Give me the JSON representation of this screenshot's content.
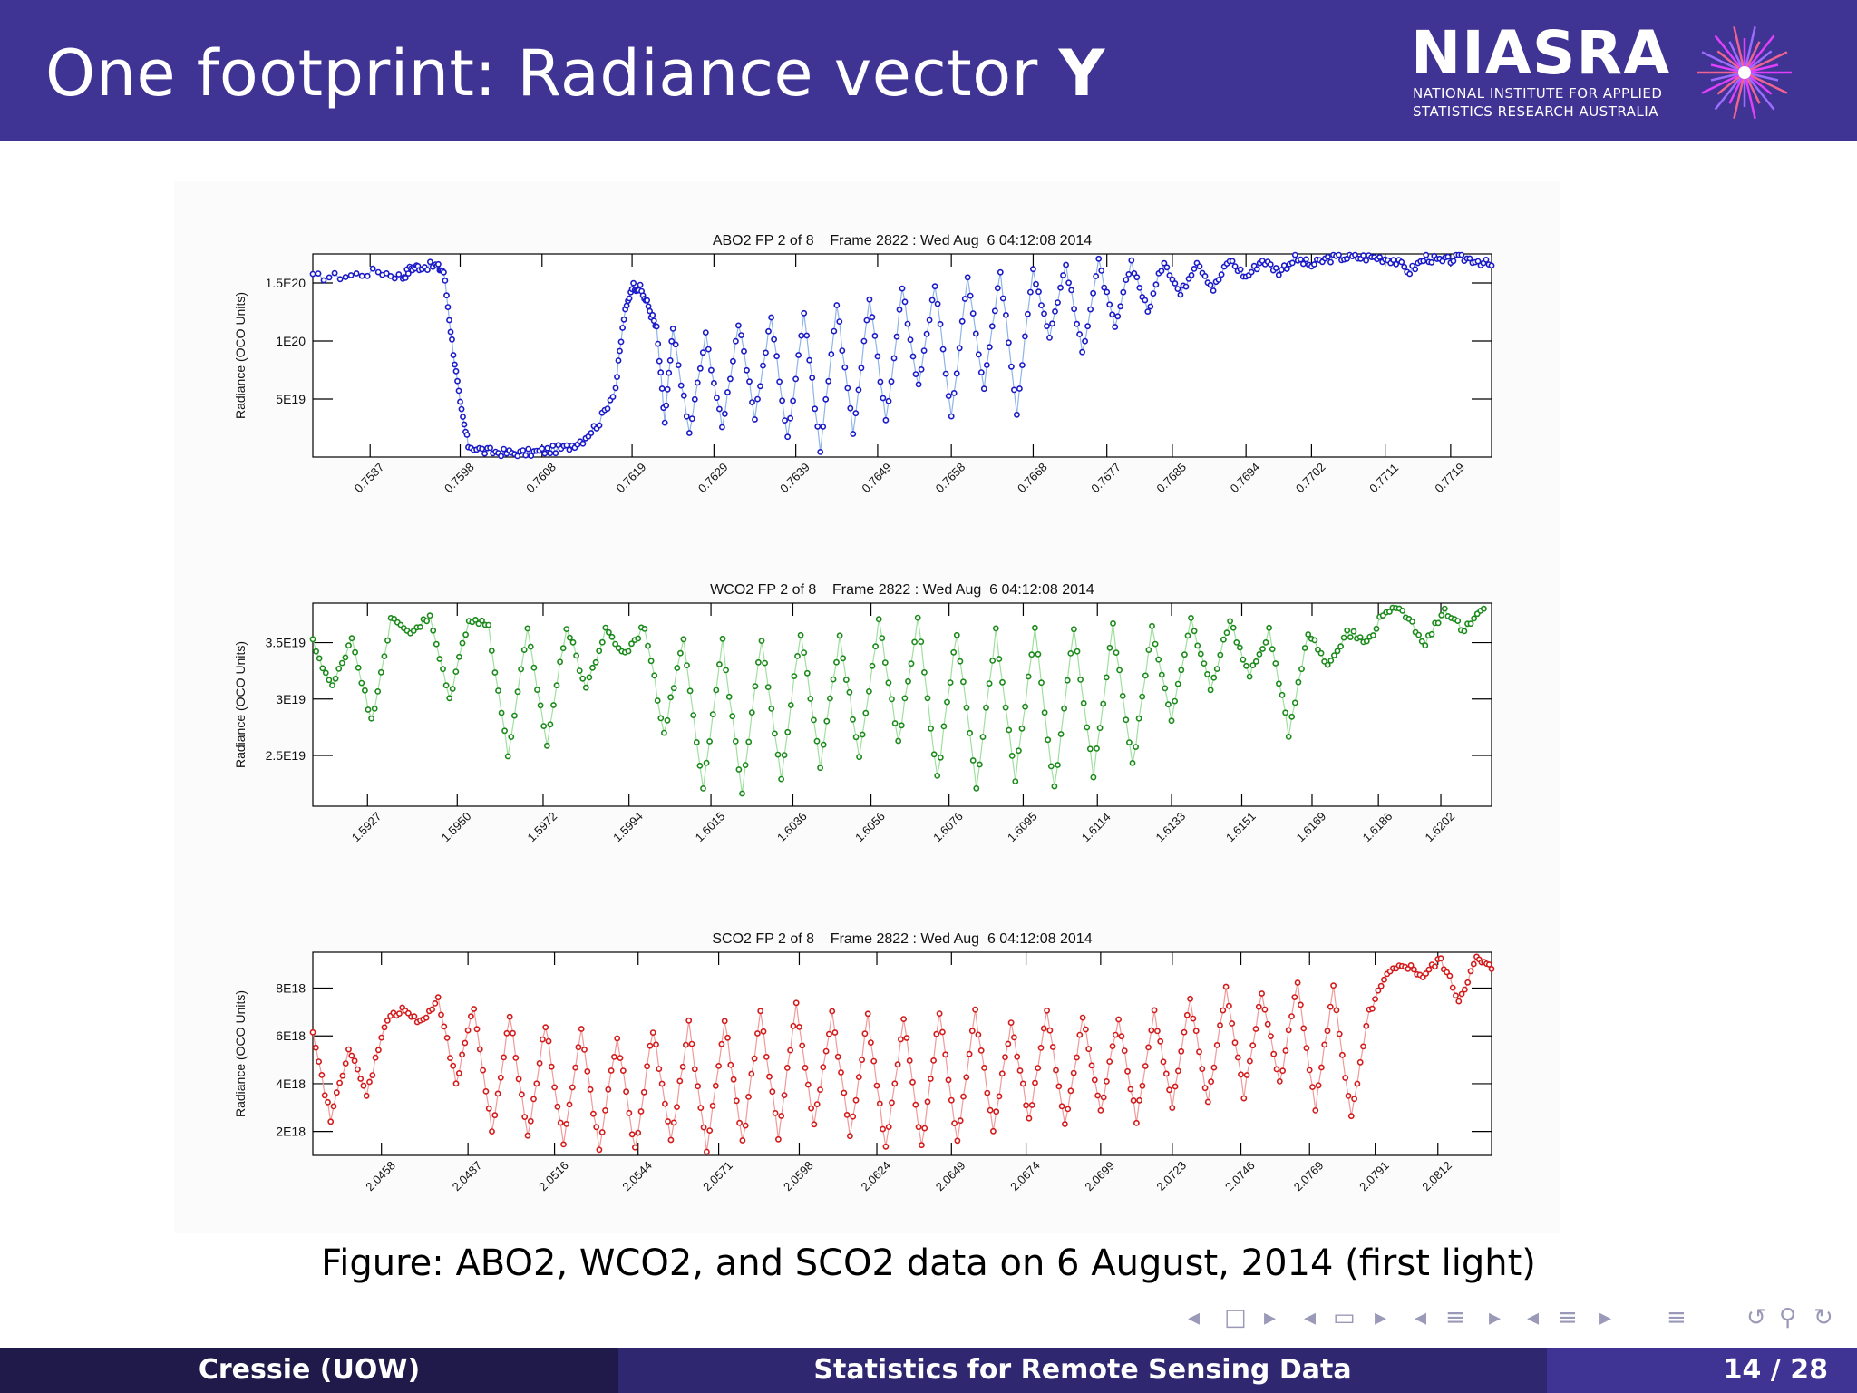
{
  "slide": {
    "title_main": "One footprint: Radiance vector ",
    "title_bold": "Y",
    "caption": "Figure: ABO2, WCO2, and SCO2 data on 6 August, 2014 (first light)"
  },
  "logo": {
    "word": "NIASRA",
    "line1": "NATIONAL INSTITUTE FOR APPLIED",
    "line2": "STATISTICS RESEARCH AUSTRALIA"
  },
  "footer": {
    "author": "Cressie  (UOW)",
    "talk_title": "Statistics for Remote Sensing Data",
    "page": "14 / 28"
  },
  "colors": {
    "header": "#3f3394",
    "footer_left": "#1f1a4a",
    "footer_mid": "#2f2770",
    "abo2": "#1a1ac8",
    "wco2": "#1a8a1a",
    "sco2": "#d41a1a"
  },
  "chart_data": [
    {
      "type": "line",
      "title": "ABO2 FP 2 of 8    Frame 2822 : Wed Aug  6 04:12:08 2014",
      "ylabel": "Radiance (OCO Units)",
      "xlabel": "",
      "xlim": [
        0.758,
        0.7724
      ],
      "ylim": [
        0,
        1.75e+20
      ],
      "yticks": [
        5e+19,
        1e+20,
        1.5e+20
      ],
      "ytick_labels": [
        "5E19",
        "1E20",
        "1.5E20"
      ],
      "xticks": [
        0.7587,
        0.7598,
        0.7608,
        0.7619,
        0.7629,
        0.7639,
        0.7649,
        0.7658,
        0.7668,
        0.7677,
        0.7685,
        0.7694,
        0.7702,
        0.7711,
        0.7719
      ],
      "xtick_labels": [
        "0.7587",
        "0.7598",
        "0.7608",
        "0.7619",
        "0.7629",
        "0.7639",
        "0.7649",
        "0.7658",
        "0.7668",
        "0.7677",
        "0.7685",
        "0.7694",
        "0.7702",
        "0.7711",
        "0.7719"
      ],
      "series": [
        {
          "x": [
            0.758,
            0.7584,
            0.7588,
            0.7591,
            0.7592,
            0.7593,
            0.7595,
            0.7596,
            0.7597,
            0.7598,
            0.7599,
            0.7601,
            0.7603,
            0.7605,
            0.7607,
            0.7609,
            0.7611,
            0.7613,
            0.7615,
            0.7617,
            0.7618,
            0.7619,
            0.762,
            0.7621,
            0.7622,
            0.7623,
            0.7624,
            0.7626,
            0.7628,
            0.763,
            0.7632,
            0.7634,
            0.7636,
            0.7638,
            0.764,
            0.7642,
            0.7644,
            0.7646,
            0.7648,
            0.765,
            0.7652,
            0.7654,
            0.7656,
            0.7658,
            0.766,
            0.7662,
            0.7664,
            0.7666,
            0.7668,
            0.767,
            0.7672,
            0.7674,
            0.7676,
            0.7678,
            0.768,
            0.7682,
            0.7684,
            0.7686,
            0.7688,
            0.769,
            0.7692,
            0.7694,
            0.7696,
            0.7698,
            0.77,
            0.7702,
            0.7704,
            0.7706,
            0.7708,
            0.771,
            0.7712,
            0.7714,
            0.7716,
            0.7718,
            0.772,
            0.7722,
            0.7724
          ],
          "y": [
            1.55e+20,
            1.56e+20,
            1.6e+20,
            1.55e+20,
            1.63e+20,
            1.64e+20,
            1.65e+20,
            1.6e+20,
            1e+20,
            4.5e+19,
            1e+19,
            5e+18,
            4e+18,
            3e+18,
            4e+18,
            6e+18,
            8e+18,
            1.5e+19,
            3e+19,
            6e+19,
            1.2e+20,
            1.48e+20,
            1.45e+20,
            1.3e+20,
            1.1e+20,
            3e+19,
            1.1e+20,
            2e+19,
            1.05e+20,
            2.5e+19,
            1.15e+20,
            3.5e+19,
            1.2e+20,
            1.5e+19,
            1.25e+20,
            5e+18,
            1.32e+20,
            2e+19,
            1.38e+20,
            3e+19,
            1.45e+20,
            6e+19,
            1.5e+20,
            3.5e+19,
            1.55e+20,
            6e+19,
            1.6e+20,
            4e+19,
            1.62e+20,
            1.05e+20,
            1.66e+20,
            9e+19,
            1.68e+20,
            1.1e+20,
            1.69e+20,
            1.25e+20,
            1.7e+20,
            1.4e+20,
            1.7e+20,
            1.45e+20,
            1.7e+20,
            1.55e+20,
            1.7e+20,
            1.6e+20,
            1.71e+20,
            1.65e+20,
            1.71e+20,
            1.72e+20,
            1.72e+20,
            1.72e+20,
            1.7e+20,
            1.6e+20,
            1.72e+20,
            1.68e+20,
            1.72e+20,
            1.7e+20,
            1.65e+20
          ]
        }
      ]
    },
    {
      "type": "line",
      "title": "WCO2 FP 2 of 8    Frame 2822 : Wed Aug  6 04:12:08 2014",
      "ylabel": "Radiance (OCO Units)",
      "xlabel": "",
      "xlim": [
        1.5913,
        1.6215
      ],
      "ylim": [
        2.05e+19,
        3.85e+19
      ],
      "yticks": [
        2.5e+19,
        3e+19,
        3.5e+19
      ],
      "ytick_labels": [
        "2.5E19",
        "3E19",
        "3.5E19"
      ],
      "xticks": [
        1.5927,
        1.595,
        1.5972,
        1.5994,
        1.6015,
        1.6036,
        1.6056,
        1.6076,
        1.6095,
        1.6114,
        1.6133,
        1.6151,
        1.6169,
        1.6186,
        1.6202
      ],
      "xtick_labels": [
        "1.5927",
        "1.5950",
        "1.5972",
        "1.5994",
        "1.6015",
        "1.6036",
        "1.6056",
        "1.6076",
        "1.6095",
        "1.6114",
        "1.6133",
        "1.6151",
        "1.6169",
        "1.6186",
        "1.6202"
      ],
      "series": [
        {
          "x": [
            1.5913,
            1.5918,
            1.5923,
            1.5928,
            1.5933,
            1.5938,
            1.5943,
            1.5948,
            1.5953,
            1.5958,
            1.5963,
            1.5968,
            1.5973,
            1.5978,
            1.5983,
            1.5988,
            1.5993,
            1.5998,
            1.6003,
            1.6008,
            1.6013,
            1.6018,
            1.6023,
            1.6028,
            1.6033,
            1.6038,
            1.6043,
            1.6048,
            1.6053,
            1.6058,
            1.6063,
            1.6068,
            1.6073,
            1.6078,
            1.6083,
            1.6088,
            1.6093,
            1.6098,
            1.6103,
            1.6108,
            1.6113,
            1.6118,
            1.6123,
            1.6128,
            1.6133,
            1.6138,
            1.6143,
            1.6148,
            1.6153,
            1.6158,
            1.6163,
            1.6168,
            1.6173,
            1.6178,
            1.6183,
            1.6188,
            1.6193,
            1.6198,
            1.6203,
            1.6208,
            1.6213
          ],
          "y": [
            3.5e+19,
            3.1e+19,
            3.55e+19,
            2.8e+19,
            3.7e+19,
            3.6e+19,
            3.72e+19,
            3e+19,
            3.72e+19,
            3.65e+19,
            2.5e+19,
            3.6e+19,
            2.6e+19,
            3.65e+19,
            3.1e+19,
            3.6e+19,
            3.4e+19,
            3.65e+19,
            2.7e+19,
            3.55e+19,
            2.2e+19,
            3.5e+19,
            2.15e+19,
            3.55e+19,
            2.3e+19,
            3.6e+19,
            2.4e+19,
            3.55e+19,
            2.5e+19,
            3.7e+19,
            2.6e+19,
            3.72e+19,
            2.3e+19,
            3.6e+19,
            2.2e+19,
            3.6e+19,
            2.3e+19,
            3.62e+19,
            2.2e+19,
            3.65e+19,
            2.3e+19,
            3.65e+19,
            2.4e+19,
            3.65e+19,
            2.8e+19,
            3.7e+19,
            3.1e+19,
            3.7e+19,
            3.2e+19,
            3.6e+19,
            2.7e+19,
            3.6e+19,
            3.3e+19,
            3.6e+19,
            3.5e+19,
            3.8e+19,
            3.75e+19,
            3.5e+19,
            3.8e+19,
            3.6e+19,
            3.8e+19
          ]
        }
      ]
    },
    {
      "type": "line",
      "title": "SCO2 FP 2 of 8    Frame 2822 : Wed Aug  6 04:12:08 2014",
      "ylabel": "Radiance (OCO Units)",
      "xlabel": "",
      "xlim": [
        2.0435,
        2.083
      ],
      "ylim": [
        1e+18,
        9.5e+18
      ],
      "yticks": [
        2e+18,
        4e+18,
        6e+18,
        8e+18
      ],
      "ytick_labels": [
        "2E18",
        "4E18",
        "6E18",
        "8E18"
      ],
      "xticks": [
        2.0458,
        2.0487,
        2.0516,
        2.0544,
        2.0571,
        2.0598,
        2.0624,
        2.0649,
        2.0674,
        2.0699,
        2.0723,
        2.0746,
        2.0769,
        2.0791,
        2.0812
      ],
      "xtick_labels": [
        "2.0458",
        "2.0487",
        "2.0516",
        "2.0544",
        "2.0571",
        "2.0598",
        "2.0624",
        "2.0649",
        "2.0674",
        "2.0699",
        "2.0723",
        "2.0746",
        "2.0769",
        "2.0791",
        "2.0812"
      ],
      "series": [
        {
          "x": [
            2.0435,
            2.0441,
            2.0447,
            2.0453,
            2.0459,
            2.0465,
            2.0471,
            2.0477,
            2.0483,
            2.0489,
            2.0495,
            2.0501,
            2.0507,
            2.0513,
            2.0519,
            2.0525,
            2.0531,
            2.0537,
            2.0543,
            2.0549,
            2.0555,
            2.0561,
            2.0567,
            2.0573,
            2.0579,
            2.0585,
            2.0591,
            2.0597,
            2.0603,
            2.0609,
            2.0615,
            2.0621,
            2.0627,
            2.0633,
            2.0639,
            2.0645,
            2.0651,
            2.0657,
            2.0663,
            2.0669,
            2.0675,
            2.0681,
            2.0687,
            2.0693,
            2.0699,
            2.0705,
            2.0711,
            2.0717,
            2.0723,
            2.0729,
            2.0735,
            2.0741,
            2.0747,
            2.0753,
            2.0759,
            2.0765,
            2.0771,
            2.0777,
            2.0783,
            2.0789,
            2.0795,
            2.0801,
            2.0807,
            2.0813,
            2.0819,
            2.0825,
            2.083
          ],
          "y": [
            6e+18,
            2.5e+18,
            5.5e+18,
            3.5e+18,
            6.5e+18,
            7.2e+18,
            6.5e+18,
            7.5e+18,
            4e+18,
            7.2e+18,
            2e+18,
            6.8e+18,
            1.8e+18,
            6.5e+18,
            1.5e+18,
            6.2e+18,
            1.2e+18,
            6e+18,
            1.2e+18,
            6.3e+18,
            1.5e+18,
            6.5e+18,
            1.2e+18,
            6.6e+18,
            1.5e+18,
            7e+18,
            1.8e+18,
            7.3e+18,
            2.2e+18,
            7e+18,
            1.8e+18,
            6.8e+18,
            1.2e+18,
            6.8e+18,
            1.3e+18,
            7e+18,
            1.5e+18,
            7e+18,
            2e+18,
            6.6e+18,
            2.5e+18,
            7e+18,
            2.2e+18,
            6.8e+18,
            2.8e+18,
            6.8e+18,
            2.5e+18,
            7e+18,
            3e+18,
            7.5e+18,
            3.2e+18,
            8e+18,
            3.5e+18,
            7.8e+18,
            4e+18,
            8.2e+18,
            3e+18,
            8e+18,
            2.5e+18,
            7e+18,
            8.5e+18,
            9e+18,
            8.5e+18,
            9.2e+18,
            7.5e+18,
            9.2e+18,
            8.8e+18
          ]
        }
      ]
    }
  ]
}
